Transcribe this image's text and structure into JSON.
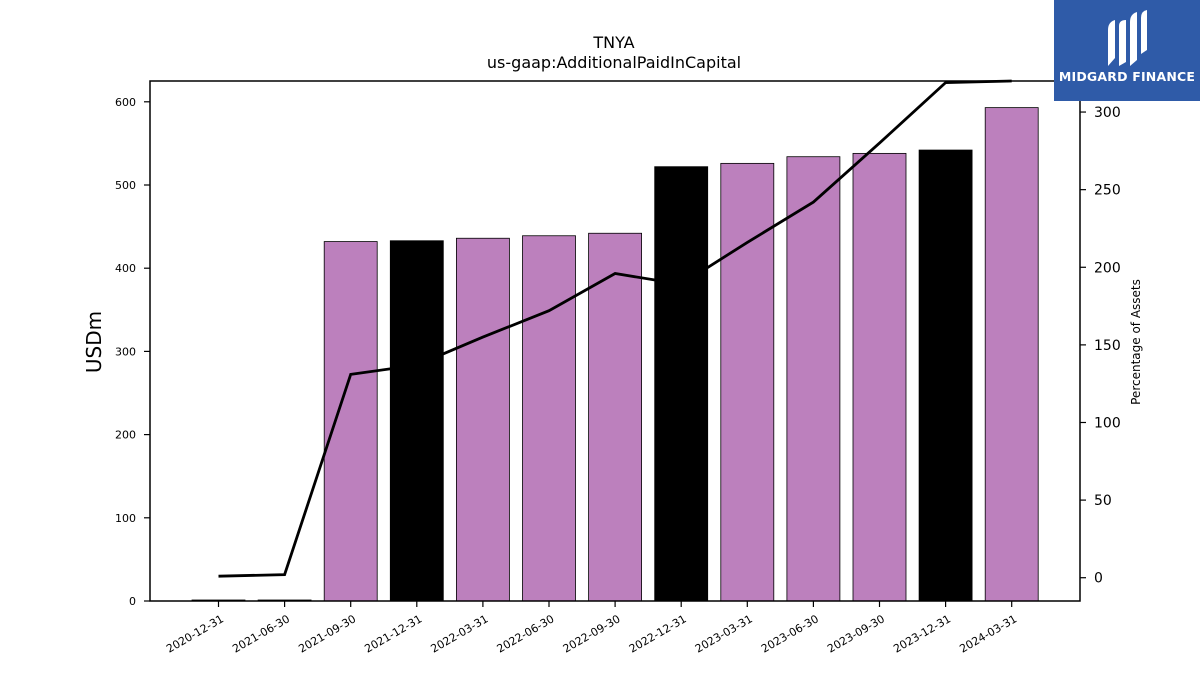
{
  "chart_data": {
    "type": "bar",
    "title": "TNYA",
    "subtitle": "us-gaap:AdditionalPaidInCapital",
    "ylabel": "USDm",
    "y2label": "Percentage of Assets",
    "ylim": [
      0,
      625
    ],
    "y2lim": [
      -15,
      320
    ],
    "yticks": [
      0,
      100,
      200,
      300,
      400,
      500,
      600
    ],
    "y2ticks": [
      0,
      50,
      100,
      150,
      200,
      250,
      300
    ],
    "categories": [
      "2020-12-31",
      "2021-06-30",
      "2021-09-30",
      "2021-12-31",
      "2022-03-31",
      "2022-06-30",
      "2022-09-30",
      "2022-12-31",
      "2023-03-31",
      "2023-06-30",
      "2023-09-30",
      "2023-12-31",
      "2024-03-31"
    ],
    "series": [
      {
        "type": "bar",
        "values": [
          1,
          1,
          432,
          433,
          436,
          439,
          442,
          522,
          526,
          534,
          538,
          542,
          593
        ],
        "colors": [
          "#000000",
          "#000000",
          "#bc80bd",
          "#000000",
          "#bc80bd",
          "#bc80bd",
          "#bc80bd",
          "#000000",
          "#bc80bd",
          "#bc80bd",
          "#bc80bd",
          "#000000",
          "#bc80bd"
        ]
      },
      {
        "type": "line",
        "axis": "right",
        "color": "#000000",
        "values": [
          1,
          2,
          131,
          137,
          155,
          172,
          196,
          189,
          216,
          242,
          280,
          319,
          320
        ]
      }
    ],
    "grid": false
  },
  "brand": {
    "name": "MIDGARD FINANCE",
    "color": "#2f5ba8"
  }
}
